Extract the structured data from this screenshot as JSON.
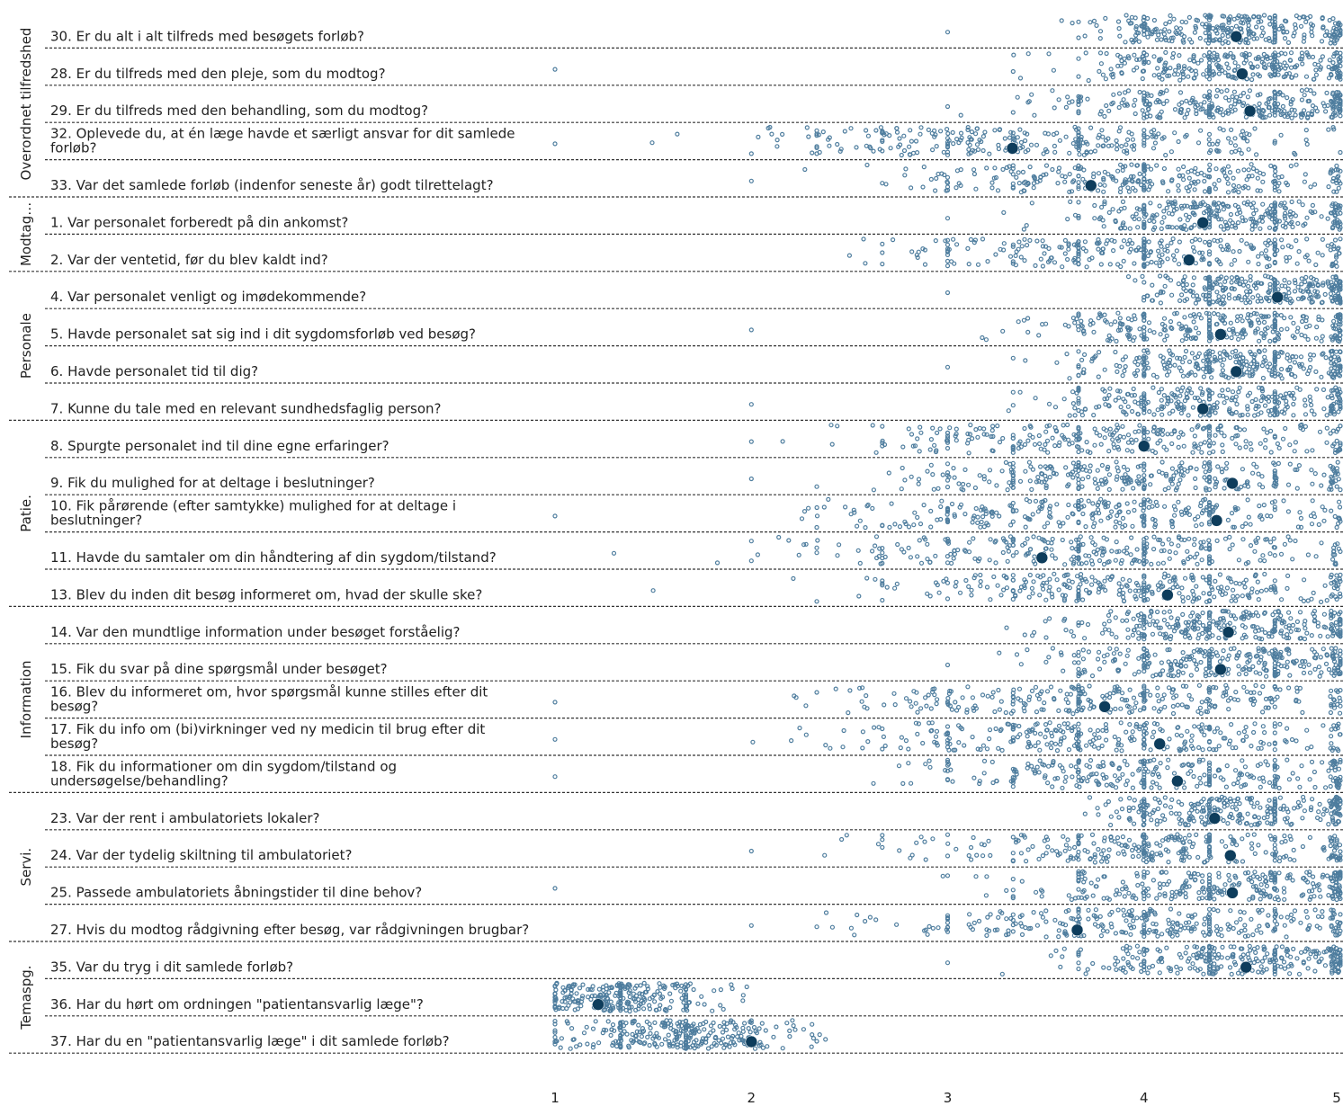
{
  "colors": {
    "points": "#4e7d9e",
    "mean": "#0e3d5c",
    "divider": "#333333",
    "text": "#222222"
  },
  "chart_data": {
    "type": "scatter",
    "title": "",
    "xlabel": "",
    "ylabel": "",
    "xlim": [
      1,
      5
    ],
    "xticks": [
      "1",
      "2",
      "3",
      "4",
      "5"
    ],
    "grid": false,
    "legend": "none",
    "groups": [
      {
        "name": "Overordnet tilfredshed",
        "questions": [
          {
            "text": "30. Er du alt i alt tilfreds med besøgets forløb?",
            "mean": 4.47,
            "min": 3.0,
            "mode_center": 4.45,
            "spread": 0.55
          },
          {
            "text": "28. Er du tilfreds med den pleje, som du modtog?",
            "mean": 4.5,
            "min": 1.0,
            "mode_center": 4.45,
            "spread": 0.6
          },
          {
            "text": "29. Er du tilfreds med den behandling, som du modtog?",
            "mean": 4.54,
            "min": 3.0,
            "mode_center": 4.45,
            "spread": 0.65
          },
          {
            "text": "32. Oplevede du, at én læge havde et særligt ansvar for dit samlede forløb?",
            "mean": 3.33,
            "min": 1.0,
            "mode_center": 3.5,
            "spread": 1.0
          },
          {
            "text": "33. Var det samlede forløb (indenfor seneste år) godt tilrettelagt?",
            "mean": 3.73,
            "min": 2.0,
            "mode_center": 3.9,
            "spread": 0.9
          }
        ]
      },
      {
        "name": "Modtag…",
        "questions": [
          {
            "text": "1. Var personalet forberedt på din ankomst?",
            "mean": 4.3,
            "min": 3.0,
            "mode_center": 4.4,
            "spread": 0.55
          },
          {
            "text": "2. Var der ventetid, før du blev kaldt ind?",
            "mean": 4.23,
            "min": 2.5,
            "mode_center": 4.0,
            "spread": 0.9
          }
        ]
      },
      {
        "name": "Personale",
        "questions": [
          {
            "text": "4. Var personalet venligt og imødekommende?",
            "mean": 4.68,
            "min": 3.0,
            "mode_center": 4.6,
            "spread": 0.45
          },
          {
            "text": "5. Havde personalet sat sig ind i dit sygdomsforløb ved besøg?",
            "mean": 4.39,
            "min": 2.0,
            "mode_center": 4.4,
            "spread": 0.65
          },
          {
            "text": "6. Havde personalet tid til dig?",
            "mean": 4.47,
            "min": 3.0,
            "mode_center": 4.45,
            "spread": 0.6
          },
          {
            "text": "7. Kunne du tale med en relevant sundhedsfaglig person?",
            "mean": 4.3,
            "min": 2.0,
            "mode_center": 4.35,
            "spread": 0.65
          }
        ]
      },
      {
        "name": "Patie.",
        "questions": [
          {
            "text": "8. Spurgte personalet ind til dine egne erfaringer?",
            "mean": 4.0,
            "min": 2.0,
            "mode_center": 3.9,
            "spread": 0.9
          },
          {
            "text": "9. Fik du mulighed for at deltage i beslutninger?",
            "mean": 4.45,
            "min": 2.0,
            "mode_center": 4.0,
            "spread": 0.95
          },
          {
            "text": "10. Fik pårørende (efter samtykke) mulighed for at deltage i beslutninger?",
            "mean": 4.37,
            "min": 1.0,
            "mode_center": 3.8,
            "spread": 1.0
          },
          {
            "text": "11. Havde du samtaler om din håndtering af din sygdom/tilstand?",
            "mean": 3.48,
            "min": 1.3,
            "mode_center": 3.8,
            "spread": 1.0
          },
          {
            "text": "13. Blev du inden dit besøg informeret om, hvad der skulle ske?",
            "mean": 4.12,
            "min": 1.5,
            "mode_center": 4.0,
            "spread": 0.95
          }
        ]
      },
      {
        "name": "Information",
        "questions": [
          {
            "text": "14. Var den mundtlige information under besøget forståelig?",
            "mean": 4.43,
            "min": 3.3,
            "mode_center": 4.4,
            "spread": 0.6
          },
          {
            "text": "15. Fik du svar på dine spørgsmål under besøget?",
            "mean": 4.39,
            "min": 3.0,
            "mode_center": 4.4,
            "spread": 0.6
          },
          {
            "text": "16. Blev du informeret om, hvor spørgsmål kunne stilles efter dit besøg?",
            "mean": 3.8,
            "min": 1.0,
            "mode_center": 3.9,
            "spread": 1.0
          },
          {
            "text": "17. Fik du info om (bi)virkninger ved ny medicin til brug efter dit besøg?",
            "mean": 4.08,
            "min": 1.0,
            "mode_center": 3.8,
            "spread": 1.0
          },
          {
            "text": "18. Fik du informationer om din sygdom/tilstand og undersøgelse/behandling?",
            "mean": 4.17,
            "min": 1.0,
            "mode_center": 4.1,
            "spread": 0.85
          }
        ]
      },
      {
        "name": "Servi.",
        "questions": [
          {
            "text": "23. Var der rent i ambulatoriets lokaler?",
            "mean": 4.36,
            "min": 3.7,
            "mode_center": 4.4,
            "spread": 0.55
          },
          {
            "text": "24. Var der tydelig skiltning til ambulatoriet?",
            "mean": 4.44,
            "min": 2.0,
            "mode_center": 4.1,
            "spread": 0.9
          },
          {
            "text": "25. Passede ambulatoriets åbningstider til dine behov?",
            "mean": 4.45,
            "min": 1.0,
            "mode_center": 4.35,
            "spread": 0.7
          },
          {
            "text": "27. Hvis du modtog rådgivning efter besøg, var rådgivningen brugbar?",
            "mean": 3.66,
            "min": 2.0,
            "mode_center": 4.0,
            "spread": 0.9
          }
        ]
      },
      {
        "name": "Temaspg.",
        "questions": [
          {
            "text": "35. Var du tryg i dit samlede forløb?",
            "mean": 4.52,
            "min": 3.0,
            "mode_center": 4.45,
            "spread": 0.6
          },
          {
            "text": "36. Har du hørt om ordningen \"patientansvarlig læge\"?",
            "mean": 1.22,
            "min": 1.0,
            "mode_center": 1.3,
            "spread": 0.4
          },
          {
            "text": "37. Har du en \"patientansvarlig læge\" i dit samlede forløb?",
            "mean": 2.0,
            "min": 1.0,
            "mode_center": 1.6,
            "spread": 0.45
          }
        ]
      }
    ]
  }
}
